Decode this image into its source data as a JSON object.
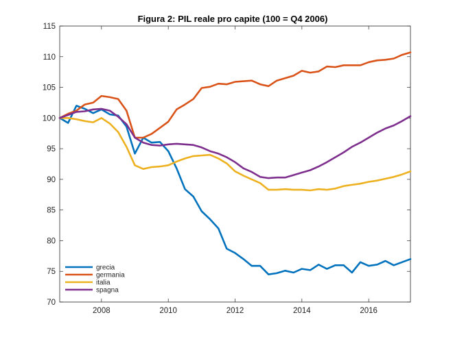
{
  "chart_data": {
    "type": "line",
    "title": "Figura 2: PIL reale pro capite (100 = Q4 2006)",
    "xlabel": "",
    "ylabel": "",
    "xlim": [
      2006.75,
      2017.25
    ],
    "ylim": [
      70,
      115
    ],
    "xticks": [
      2008,
      2010,
      2012,
      2014,
      2016
    ],
    "xtick_labels": [
      "2008",
      "2010",
      "2012",
      "2014",
      "2016"
    ],
    "yticks": [
      70,
      75,
      80,
      85,
      90,
      95,
      100,
      105,
      110,
      115
    ],
    "ytick_labels": [
      "70",
      "75",
      "80",
      "85",
      "90",
      "95",
      "100",
      "105",
      "110",
      "115"
    ],
    "grid": false,
    "legend": "bottom-left",
    "x_start": 2006.75,
    "x_step": 0.25,
    "series": [
      {
        "name": "grecia",
        "color": "#0072BD",
        "values": [
          100.0,
          99.2,
          102.0,
          101.5,
          100.8,
          101.4,
          100.6,
          100.4,
          98.6,
          94.2,
          96.8,
          96.0,
          96.1,
          94.6,
          91.8,
          88.4,
          87.2,
          84.8,
          83.5,
          82.0,
          78.7,
          78.0,
          77.0,
          75.9,
          75.9,
          74.5,
          74.7,
          75.1,
          74.8,
          75.4,
          75.2,
          76.1,
          75.4,
          76.0,
          76.0,
          74.8,
          76.5,
          75.9,
          76.1,
          76.7,
          76.0,
          76.5,
          77.0
        ]
      },
      {
        "name": "germania",
        "color": "#D95319",
        "values": [
          100.0,
          100.7,
          101.2,
          102.2,
          102.5,
          103.6,
          103.4,
          103.1,
          101.2,
          96.8,
          96.8,
          97.4,
          98.4,
          99.4,
          101.4,
          102.2,
          103.1,
          104.9,
          105.1,
          105.6,
          105.5,
          105.9,
          106.0,
          106.1,
          105.5,
          105.2,
          106.1,
          106.5,
          106.9,
          107.7,
          107.4,
          107.6,
          108.4,
          108.3,
          108.6,
          108.6,
          108.6,
          109.1,
          109.4,
          109.5,
          109.7,
          110.3,
          110.7
        ]
      },
      {
        "name": "italia",
        "color": "#EDB120",
        "values": [
          100.0,
          100.0,
          99.8,
          99.5,
          99.3,
          100.0,
          99.1,
          97.7,
          95.3,
          92.3,
          91.7,
          92.0,
          92.1,
          92.3,
          92.9,
          93.4,
          93.8,
          93.9,
          94.0,
          93.4,
          92.6,
          91.3,
          90.6,
          90.0,
          89.4,
          88.3,
          88.3,
          88.4,
          88.3,
          88.3,
          88.2,
          88.4,
          88.3,
          88.5,
          88.9,
          89.1,
          89.3,
          89.6,
          89.8,
          90.1,
          90.4,
          90.8,
          91.3
        ]
      },
      {
        "name": "spagna",
        "color": "#7E2F8E",
        "values": [
          100.0,
          100.5,
          101.0,
          101.1,
          101.4,
          101.5,
          101.2,
          100.2,
          99.0,
          96.8,
          96.0,
          95.6,
          95.5,
          95.7,
          95.8,
          95.7,
          95.6,
          95.2,
          94.6,
          94.2,
          93.6,
          92.8,
          91.8,
          91.2,
          90.4,
          90.2,
          90.3,
          90.3,
          90.7,
          91.1,
          91.5,
          92.1,
          92.8,
          93.6,
          94.4,
          95.3,
          96.0,
          96.8,
          97.6,
          98.3,
          98.8,
          99.5,
          100.3
        ]
      }
    ]
  }
}
